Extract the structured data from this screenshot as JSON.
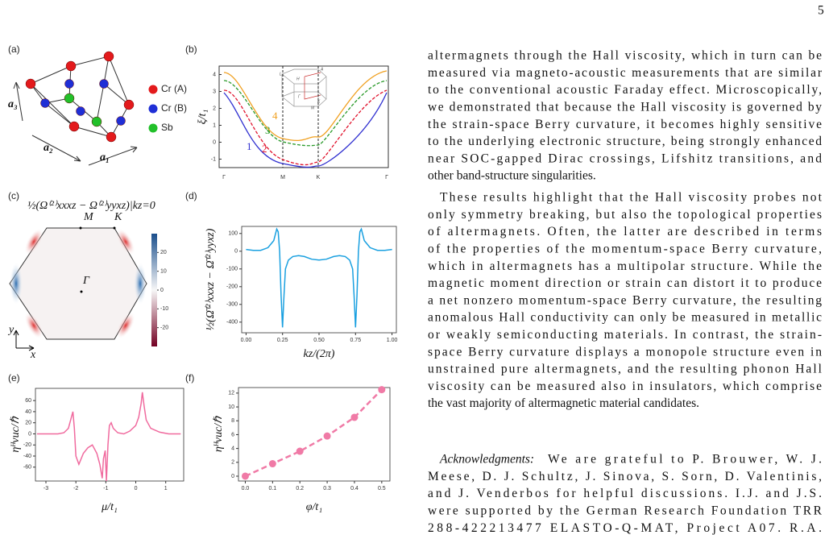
{
  "page_number": "5",
  "panels": {
    "a": {
      "label": "(a)",
      "axis_labels": [
        "a₃",
        "a₂",
        "a₁"
      ],
      "legend": [
        {
          "name": "Cr (A)",
          "color": "#e31a1c"
        },
        {
          "name": "Cr (B)",
          "color": "#1f2fd6"
        },
        {
          "name": "Sb",
          "color": "#22c02a"
        }
      ]
    },
    "b": {
      "label": "(b)",
      "ylabel": "ξ/t₁",
      "ylim": [
        -1.5,
        4.5
      ],
      "yticks": [
        4,
        3,
        2,
        1,
        0,
        -1
      ],
      "x_labels": [
        "Γ",
        "M",
        "K",
        "Γ"
      ],
      "bands": [
        {
          "name": "1",
          "color": "#3030d0"
        },
        {
          "name": "2",
          "color": "#e0102a"
        },
        {
          "name": "3",
          "color": "#2a9a2a"
        },
        {
          "name": "4",
          "color": "#f0a020"
        }
      ],
      "inset_labels": [
        "L",
        "H",
        "A",
        "Γ",
        "K",
        "M"
      ]
    },
    "c": {
      "label": "(c)",
      "title": "½(Ω⁽²⁾xxxz − Ω⁽²⁾yyxz)|kz=0",
      "points": [
        "M",
        "K",
        "Γ"
      ],
      "axes": [
        "y",
        "x"
      ],
      "colorbar_lim": [
        -30,
        30
      ],
      "colorbar_ticks": [
        20,
        10,
        0,
        -10,
        -20
      ]
    }
  },
  "chart_data": [
    {
      "type": "line",
      "label": "(d)",
      "xlabel": "kz/(2π)",
      "ylabel": "½(Ω̄⁽²⁾xxxz − Ω̄⁽²⁾yyxz)",
      "color": "#1aa0e0",
      "markers": false,
      "dashed": false,
      "x": [
        0,
        0.05,
        0.1,
        0.15,
        0.19,
        0.21,
        0.22,
        0.23,
        0.24,
        0.25,
        0.26,
        0.27,
        0.29,
        0.32,
        0.36,
        0.4,
        0.45,
        0.5,
        0.55,
        0.6,
        0.64,
        0.68,
        0.71,
        0.73,
        0.74,
        0.75,
        0.76,
        0.77,
        0.78,
        0.79,
        0.81,
        0.85,
        0.9,
        0.95,
        1
      ],
      "values": [
        10,
        5,
        5,
        20,
        60,
        125,
        110,
        0,
        -250,
        -430,
        -250,
        -100,
        -50,
        -30,
        -25,
        -30,
        -45,
        -50,
        -45,
        -30,
        -25,
        -30,
        -50,
        -100,
        -250,
        -430,
        -250,
        0,
        110,
        125,
        60,
        20,
        5,
        5,
        10
      ],
      "xlim": [
        -0.03,
        1.03
      ],
      "ylim": [
        -460,
        140
      ],
      "xticks": [
        {
          "value": 0,
          "label": "0.00"
        },
        0.25,
        {
          "value": 0.5,
          "label": "0.50"
        },
        0.75,
        {
          "value": 1,
          "label": "1.00"
        }
      ],
      "yticks": [
        100,
        0,
        -100,
        -200,
        -300,
        -400
      ]
    },
    {
      "type": "line",
      "label": "(e)",
      "xlabel": "μ/t₁",
      "ylabel": "ηᴴvuc/ℏ",
      "color": "#f06a9e",
      "markers": false,
      "dashed": false,
      "x": [
        -3.3,
        -2.6,
        -2.4,
        -2.25,
        -2.15,
        -2.1,
        -2.05,
        -2,
        -1.9,
        -1.75,
        -1.6,
        -1.45,
        -1.3,
        -1.2,
        -1.12,
        -1.08,
        -1.02,
        -0.98,
        -0.93,
        -0.88,
        -0.82,
        -0.75,
        -0.6,
        -0.4,
        -0.2,
        0,
        0.1,
        0.18,
        0.22,
        0.28,
        0.35,
        0.5,
        0.8,
        1.1,
        1.5
      ],
      "values": [
        0,
        0,
        2,
        10,
        30,
        40,
        10,
        -40,
        -55,
        -35,
        -25,
        -20,
        -35,
        -55,
        -80,
        -45,
        -30,
        -85,
        -20,
        15,
        20,
        10,
        2,
        0,
        5,
        15,
        30,
        55,
        75,
        50,
        25,
        10,
        3,
        0,
        0
      ],
      "xlim": [
        -3.35,
        1.6
      ],
      "ylim": [
        -85,
        82
      ],
      "xticks": [
        -3,
        -2,
        -1,
        0,
        1
      ],
      "yticks": [
        60,
        40,
        20,
        0,
        -20,
        -40,
        -60
      ]
    },
    {
      "type": "line",
      "label": "(f)",
      "xlabel": "φ/t₁",
      "ylabel": "ηᴴvuc/ℏ",
      "color": "#f07aa6",
      "markers": true,
      "dashed": true,
      "x": [
        0,
        0.1,
        0.2,
        0.3,
        0.4,
        0.5
      ],
      "values": [
        0,
        1.8,
        3.6,
        5.8,
        8.5,
        12.5
      ],
      "xlim": [
        -0.025,
        0.53
      ],
      "ylim": [
        -0.7,
        12.8
      ],
      "xticks": [
        {
          "value": 0,
          "label": "0.0"
        },
        0.1,
        0.2,
        0.3,
        0.4,
        0.5
      ],
      "yticks": [
        0,
        2,
        4,
        6,
        8,
        10,
        12
      ]
    }
  ],
  "text": {
    "paragraphs": [
      {
        "lines": [
          "altermagnets through the Hall viscosity, which in turn can be",
          "measured via magneto-acoustic measurements that are similar",
          "to the conventional acoustic Faraday effect. Microscopically,",
          "we demonstrated that because the Hall viscosity is governed by",
          "the strain-space Berry curvature, it becomes highly sensitive",
          "to the underlying electronic structure, being strongly enhanced",
          "near SOC-gapped Dirac crossings, Lifshitz transitions, and",
          "other band-structure singularities."
        ]
      },
      {
        "lines": [
          "These results highlight that the Hall viscosity probes not",
          "only symmetry breaking, but also the topological properties",
          "of altermagnets. Often, the latter are described in terms",
          "of the properties of the momentum-space Berry curvature,",
          "which in altermagnets has a multipolar structure. While the",
          "magnetic moment direction or strain can distort it to produce",
          "a net nonzero momentum-space Berry curvature, the resulting",
          "anomalous Hall conductivity can only be measured in metallic",
          "or weakly semiconducting materials. In contrast, the strain-",
          "space Berry curvature displays a monopole structure even in",
          "unstrained pure altermagnets, and the resulting phonon Hall",
          "viscosity can be measured also in insulators, which comprise",
          "the vast majority of altermagnetic material candidates."
        ]
      },
      {
        "lead": "Acknowledgments:",
        "lines": [
          "We are grateful to P. Brouwer, W. J.",
          "Meese, D. J. Schultz, J. Sinova, S. Sorn, D. Valentinis,",
          "and J. Venderbos for helpful discussions. I.J. and J.S.",
          "were supported by the German Research Foundation TRR",
          "288-422213477 ELASTO-Q-MAT, Project A07. R.A."
        ]
      }
    ]
  }
}
